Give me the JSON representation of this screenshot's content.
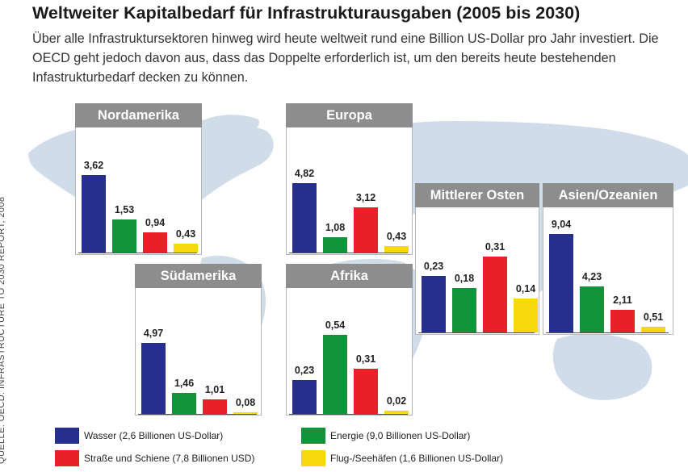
{
  "title": "Weltweiter Kapitalbedarf für Infrastrukturausgaben (2005 bis 2030)",
  "subtitle": "Über alle Infrastruktursektoren hinweg wird heute weltweit rund eine Billion US-Dollar pro Jahr investiert. Die OECD geht jedoch davon aus, dass das Doppelte erforderlich ist, um den bereits heute bestehenden Infastrukturbedarf decken zu können.",
  "source": "QUELLE: OECD: INFRASTRUCTURE TO 2030 REPORT, 2008",
  "colors": {
    "wasser": "#262f8e",
    "energie": "#129339",
    "strasse": "#e8202a",
    "flug": "#f7d80e"
  },
  "chart_data": {
    "type": "bar",
    "categories": [
      "Wasser",
      "Energie",
      "Straße und Schiene",
      "Flug-/Seehäfen"
    ],
    "panels": [
      {
        "name": "Nordamerika",
        "values": [
          3.62,
          1.53,
          0.94,
          0.43
        ],
        "labels": [
          "3,62",
          "1,53",
          "0,94",
          "0,43"
        ]
      },
      {
        "name": "Europa",
        "values": [
          4.82,
          1.08,
          3.12,
          0.43
        ],
        "labels": [
          "4,82",
          "1,08",
          "3,12",
          "0,43"
        ]
      },
      {
        "name": "Südamerika",
        "values": [
          4.97,
          1.46,
          1.01,
          0.08
        ],
        "labels": [
          "4,97",
          "1,46",
          "1,01",
          "0,08"
        ]
      },
      {
        "name": "Afrika",
        "values": [
          0.23,
          0.54,
          0.31,
          0.02
        ],
        "labels": [
          "0,23",
          "0,54",
          "0,31",
          "0,02"
        ]
      },
      {
        "name": "Mittlerer Osten",
        "values": [
          0.23,
          0.18,
          0.31,
          0.14
        ],
        "labels": [
          "0,23",
          "0,18",
          "0,31",
          "0,14"
        ]
      },
      {
        "name": "Asien/Ozeanien",
        "values": [
          9.04,
          4.23,
          2.11,
          0.51
        ],
        "labels": [
          "9,04",
          "4,23",
          "2,11",
          "0,51"
        ]
      }
    ],
    "legend": [
      {
        "key": "wasser",
        "label": "Wasser (2,6 Billionen US-Dollar)"
      },
      {
        "key": "energie",
        "label": "Energie (9,0 Billionen US-Dollar)"
      },
      {
        "key": "strasse",
        "label": "Straße und Schiene (7,8 Billionen USD)"
      },
      {
        "key": "flug",
        "label": "Flug-/Seehäfen (1,6 Billionen US-Dollar)"
      }
    ],
    "legend_position": "bottom",
    "grid": false
  }
}
